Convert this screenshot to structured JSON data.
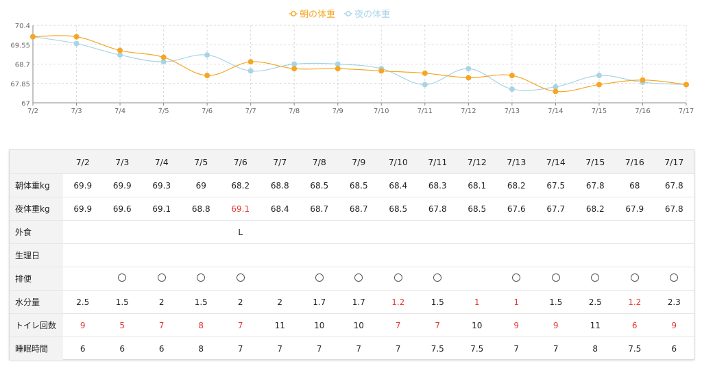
{
  "chart_data": {
    "type": "line",
    "categories": [
      "7/2",
      "7/3",
      "7/4",
      "7/5",
      "7/6",
      "7/7",
      "7/8",
      "7/9",
      "7/10",
      "7/11",
      "7/12",
      "7/13",
      "7/14",
      "7/15",
      "7/16",
      "7/17"
    ],
    "series": [
      {
        "name": "朝の体重",
        "color": "#f5a623",
        "values": [
          69.9,
          69.9,
          69.3,
          69,
          68.2,
          68.8,
          68.5,
          68.5,
          68.4,
          68.3,
          68.1,
          68.2,
          67.5,
          67.8,
          68,
          67.8
        ]
      },
      {
        "name": "夜の体重",
        "color": "#a8d4e6",
        "values": [
          69.9,
          69.6,
          69.1,
          68.8,
          69.1,
          68.4,
          68.7,
          68.7,
          68.5,
          67.8,
          68.5,
          67.6,
          67.7,
          68.2,
          67.9,
          67.8
        ]
      }
    ],
    "yticks": [
      "67",
      "67.85",
      "68.7",
      "69.55",
      "70.4"
    ],
    "ylim": [
      67,
      70.4
    ],
    "grid": true,
    "legend": "top-center"
  },
  "table": {
    "dates": [
      "7/2",
      "7/3",
      "7/4",
      "7/5",
      "7/6",
      "7/7",
      "7/8",
      "7/9",
      "7/10",
      "7/11",
      "7/12",
      "7/13",
      "7/14",
      "7/15",
      "7/16",
      "7/17"
    ],
    "rows": [
      {
        "label": "朝体重kg",
        "values": [
          "69.9",
          "69.9",
          "69.3",
          "69",
          "68.2",
          "68.8",
          "68.5",
          "68.5",
          "68.4",
          "68.3",
          "68.1",
          "68.2",
          "67.5",
          "67.8",
          "68",
          "67.8"
        ],
        "red": []
      },
      {
        "label": "夜体重kg",
        "values": [
          "69.9",
          "69.6",
          "69.1",
          "68.8",
          "69.1",
          "68.4",
          "68.7",
          "68.7",
          "68.5",
          "67.8",
          "68.5",
          "67.6",
          "67.7",
          "68.2",
          "67.9",
          "67.8"
        ],
        "red": [
          4
        ]
      },
      {
        "label": "外食",
        "values": [
          "",
          "",
          "",
          "",
          "L",
          "",
          "",
          "",
          "",
          "",
          "",
          "",
          "",
          "",
          "",
          ""
        ],
        "red": []
      },
      {
        "label": "生理日",
        "values": [
          "",
          "",
          "",
          "",
          "",
          "",
          "",
          "",
          "",
          "",
          "",
          "",
          "",
          "",
          "",
          ""
        ],
        "red": []
      },
      {
        "label": "排便",
        "values": [
          "",
          "○",
          "○",
          "○",
          "○",
          "",
          "○",
          "○",
          "○",
          "○",
          "",
          "○",
          "○",
          "○",
          "○",
          "○"
        ],
        "red": []
      },
      {
        "label": "水分量",
        "values": [
          "2.5",
          "1.5",
          "2",
          "1.5",
          "2",
          "2",
          "1.7",
          "1.7",
          "1.2",
          "1.5",
          "1",
          "1",
          "1.5",
          "2.5",
          "1.2",
          "2.3"
        ],
        "red": [
          8,
          10,
          11,
          14
        ]
      },
      {
        "label": "トイレ回数",
        "values": [
          "9",
          "5",
          "7",
          "8",
          "7",
          "11",
          "10",
          "10",
          "7",
          "7",
          "10",
          "9",
          "9",
          "11",
          "6",
          "9"
        ],
        "red": [
          0,
          1,
          2,
          3,
          4,
          8,
          9,
          11,
          12,
          14,
          15
        ]
      },
      {
        "label": "睡眠時間",
        "values": [
          "6",
          "6",
          "6",
          "8",
          "7",
          "7",
          "7",
          "7",
          "7",
          "7.5",
          "7.5",
          "7",
          "7",
          "8",
          "7.5",
          "6"
        ],
        "red": []
      }
    ]
  }
}
